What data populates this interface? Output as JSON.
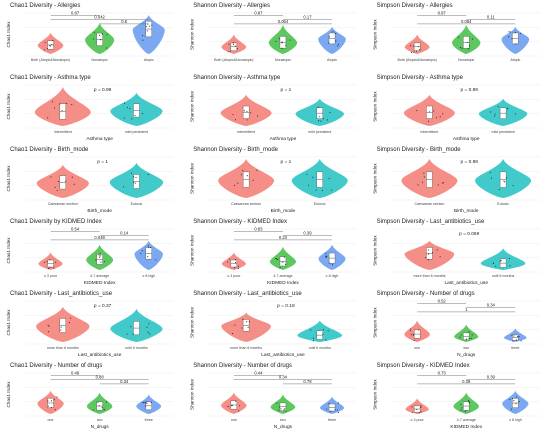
{
  "palette": {
    "red": "#f4827a",
    "green": "#4cc24f",
    "blue": "#6d9ef0",
    "teal": "#2ec4c4",
    "box": "#ffffff",
    "line": "#555555",
    "text": "#222222",
    "grid": "#ececec"
  },
  "chart_data": [
    {
      "type": "violin",
      "title": "Chao1 Diversity - Allergies",
      "ylabel": "Chao1 Index",
      "xlabel": "",
      "categories": [
        "Both (Atopic&Nonatopic)",
        "Nonatopic",
        "Atopic"
      ],
      "colors": [
        "red",
        "green",
        "blue"
      ],
      "sizes": [
        0.55,
        0.8,
        1.0
      ],
      "centers": [
        0.4,
        0.45,
        0.62
      ],
      "comparisons": [
        {
          "label": "0.87",
          "from": 0,
          "to": 1
        },
        {
          "label": "0.042",
          "from": 0,
          "to": 2
        },
        {
          "label": "0.6",
          "from": 1,
          "to": 2
        }
      ]
    },
    {
      "type": "violin",
      "title": "Shannon Diversity - Allergies",
      "ylabel": "Shannon Index",
      "xlabel": "",
      "categories": [
        "Both (Atopic&Nonatopic)",
        "Nonatopic",
        "Atopic"
      ],
      "colors": [
        "red",
        "green",
        "blue"
      ],
      "sizes": [
        0.5,
        0.75,
        0.7
      ],
      "centers": [
        0.35,
        0.38,
        0.55
      ],
      "comparisons": [
        {
          "label": "0.87",
          "from": 0,
          "to": 1
        },
        {
          "label": "0.17",
          "from": 1,
          "to": 2
        },
        {
          "label": "0.064",
          "from": 0,
          "to": 2
        }
      ]
    },
    {
      "type": "violin",
      "title": "Simpson Diversity - Allergies",
      "ylabel": "Simpson Index",
      "xlabel": "",
      "categories": [
        "Both (Atopic&Nonatopic)",
        "Nonatopic",
        "Atopic"
      ],
      "colors": [
        "red",
        "green",
        "blue"
      ],
      "sizes": [
        0.5,
        0.75,
        0.7
      ],
      "centers": [
        0.35,
        0.38,
        0.55
      ],
      "comparisons": [
        {
          "label": "0.87",
          "from": 0,
          "to": 1
        },
        {
          "label": "0.11",
          "from": 1,
          "to": 2
        },
        {
          "label": "0.064",
          "from": 0,
          "to": 2
        }
      ]
    },
    {
      "type": "violin",
      "title": "Chao1 Diversity - Asthma type",
      "ylabel": "Chao1 Index",
      "xlabel": "Asthma type",
      "categories": [
        "intermittent",
        "mild persistent"
      ],
      "colors": [
        "red",
        "teal"
      ],
      "sizes": [
        1.0,
        0.85
      ],
      "centers": [
        0.35,
        0.45
      ],
      "ptext": "p = 0.99"
    },
    {
      "type": "violin",
      "title": "Shannon Diversity - Asthma type",
      "ylabel": "Shannon Index",
      "xlabel": "Asthma type",
      "categories": [
        "intermittent",
        "mild persistent"
      ],
      "colors": [
        "red",
        "teal"
      ],
      "sizes": [
        0.8,
        0.7
      ],
      "centers": [
        0.42,
        0.45
      ],
      "ptext": "p = 1"
    },
    {
      "type": "violin",
      "title": "Simpson Diversity - Asthma type",
      "ylabel": "Simpson Index",
      "xlabel": "Asthma type",
      "categories": [
        "intermittent",
        "mild persistent"
      ],
      "colors": [
        "red",
        "teal"
      ],
      "sizes": [
        0.8,
        0.7
      ],
      "centers": [
        0.42,
        0.45
      ],
      "ptext": "p = 0.89"
    },
    {
      "type": "violin",
      "title": "Chao1 Diversity - Birth_mode",
      "ylabel": "Chao1 Index",
      "xlabel": "Birth_mode",
      "categories": [
        "Caesarean section",
        "Eutocic"
      ],
      "colors": [
        "red",
        "teal"
      ],
      "sizes": [
        0.85,
        0.9
      ],
      "centers": [
        0.45,
        0.45
      ],
      "ptext": "p = 1"
    },
    {
      "type": "violin",
      "title": "Shannon Diversity - Birth_mode",
      "ylabel": "Shannon Index",
      "xlabel": "Birth_mode",
      "categories": [
        "Caesarean section",
        "Eutocic"
      ],
      "colors": [
        "red",
        "teal"
      ],
      "sizes": [
        1.0,
        1.0
      ],
      "centers": [
        0.45,
        0.45
      ],
      "ptext": "p = 1"
    },
    {
      "type": "violin",
      "title": "Simpson Diversity - Birth_mode",
      "ylabel": "Simpson Index",
      "xlabel": "Birth_mode",
      "categories": [
        "Caesarean section",
        "Eutocic"
      ],
      "colors": [
        "red",
        "teal"
      ],
      "sizes": [
        1.0,
        1.0
      ],
      "centers": [
        0.45,
        0.45
      ],
      "ptext": "p = 0.98"
    },
    {
      "type": "violin",
      "title": "Chao1 Diversity by KIDMED Index",
      "ylabel": "Chao1 Index",
      "xlabel": "KIDMED Index",
      "categories": [
        "≤ 3 poor",
        "4-7 average",
        "≥ 8 high"
      ],
      "colors": [
        "red",
        "green",
        "blue"
      ],
      "sizes": [
        0.45,
        0.65,
        0.75
      ],
      "centers": [
        0.35,
        0.4,
        0.55
      ],
      "comparisons": [
        {
          "label": "0.54",
          "from": 0,
          "to": 1
        },
        {
          "label": "0.14",
          "from": 1,
          "to": 2
        },
        {
          "label": "0.048",
          "from": 0,
          "to": 2
        }
      ]
    },
    {
      "type": "violin",
      "title": "Shannon Diversity - KIDMED Index",
      "ylabel": "Shannon Index",
      "xlabel": "KIDMED Index",
      "categories": [
        "≤ 3 poor",
        "4-7 average",
        "≥ 8 high"
      ],
      "colors": [
        "red",
        "green",
        "blue"
      ],
      "sizes": [
        0.45,
        0.6,
        0.65
      ],
      "centers": [
        0.35,
        0.35,
        0.45
      ],
      "comparisons": [
        {
          "label": "0.83",
          "from": 0,
          "to": 1
        },
        {
          "label": "0.39",
          "from": 1,
          "to": 2
        },
        {
          "label": "0.23",
          "from": 0,
          "to": 2
        }
      ]
    },
    {
      "type": "violin",
      "title": "Simpson Diversity - Last_antibiotics_use",
      "ylabel": "Simpson Index",
      "xlabel": "Last_antibiotics_use",
      "categories": [
        "more than 6 months",
        "until 6 months"
      ],
      "colors": [
        "red",
        "teal"
      ],
      "sizes": [
        0.75,
        0.55
      ],
      "centers": [
        0.55,
        0.3
      ],
      "ptext": "p = 0.069"
    },
    {
      "type": "violin",
      "title": "Chao1 Diversity - Last_antibiotics_use",
      "ylabel": "Chao1 Index",
      "xlabel": "Last_antibiotics_use",
      "categories": [
        "more than 6 months",
        "until 6 months"
      ],
      "colors": [
        "red",
        "teal"
      ],
      "sizes": [
        0.9,
        0.85
      ],
      "centers": [
        0.45,
        0.4
      ],
      "ptext": "p = 0.37"
    },
    {
      "type": "violin",
      "title": "Shannon Diversity - Last_antibiotics_use",
      "ylabel": "Shannon Index",
      "xlabel": "Last_antibiotics_use",
      "categories": [
        "more than 6 months",
        "until 6 months"
      ],
      "colors": [
        "red",
        "teal"
      ],
      "sizes": [
        0.75,
        0.55
      ],
      "centers": [
        0.55,
        0.3
      ],
      "ptext": "p = 0.18"
    },
    {
      "type": "violin",
      "title": "Simpson Diversity - Number of drugs",
      "ylabel": "Simpson Index",
      "xlabel": "N_drugs",
      "categories": [
        "one",
        "two",
        "three"
      ],
      "colors": [
        "red",
        "green",
        "blue"
      ],
      "sizes": [
        0.55,
        0.45,
        0.35
      ],
      "centers": [
        0.35,
        0.3,
        0.3
      ],
      "comparisons": [
        {
          "label": "0.52",
          "from": 0,
          "to": 1
        },
        {
          "label": "0.34",
          "from": 1,
          "to": 2
        },
        {
          "label": "1",
          "from": 0,
          "to": 2
        }
      ]
    },
    {
      "type": "violin",
      "title": "Chao1 Diversity - Number of drugs",
      "ylabel": "Chao1 Index",
      "xlabel": "N_drugs",
      "categories": [
        "one",
        "two",
        "three"
      ],
      "colors": [
        "red",
        "green",
        "blue"
      ],
      "sizes": [
        0.6,
        0.55,
        0.5
      ],
      "centers": [
        0.45,
        0.35,
        0.4
      ],
      "comparisons": [
        {
          "label": "0.49",
          "from": 0,
          "to": 1
        },
        {
          "label": "0.88",
          "from": 0,
          "to": 2
        },
        {
          "label": "0.34",
          "from": 1,
          "to": 2
        }
      ]
    },
    {
      "type": "violin",
      "title": "Shannon Diversity - Number of drugs",
      "ylabel": "Shannon Index",
      "xlabel": "N_drugs",
      "categories": [
        "one",
        "two",
        "three"
      ],
      "colors": [
        "red",
        "green",
        "blue"
      ],
      "sizes": [
        0.55,
        0.5,
        0.45
      ],
      "centers": [
        0.4,
        0.35,
        0.35
      ],
      "comparisons": [
        {
          "label": "0.44",
          "from": 0,
          "to": 1
        },
        {
          "label": "0.34",
          "from": 0,
          "to": 2
        },
        {
          "label": "0.78",
          "from": 1,
          "to": 2
        }
      ]
    },
    {
      "type": "violin",
      "title": "Simpson Diversity - KIDMED Index",
      "ylabel": "Simpson Index",
      "xlabel": "KIDMED Index",
      "categories": [
        "≤ 3 poor",
        "4-7 average",
        "≥ 8 high"
      ],
      "colors": [
        "red",
        "green",
        "blue"
      ],
      "sizes": [
        0.4,
        0.55,
        0.6
      ],
      "centers": [
        0.3,
        0.35,
        0.45
      ],
      "comparisons": [
        {
          "label": "0.73",
          "from": 0,
          "to": 1
        },
        {
          "label": "0.39",
          "from": 1,
          "to": 2
        },
        {
          "label": "0.39",
          "from": 0,
          "to": 2
        }
      ]
    }
  ]
}
